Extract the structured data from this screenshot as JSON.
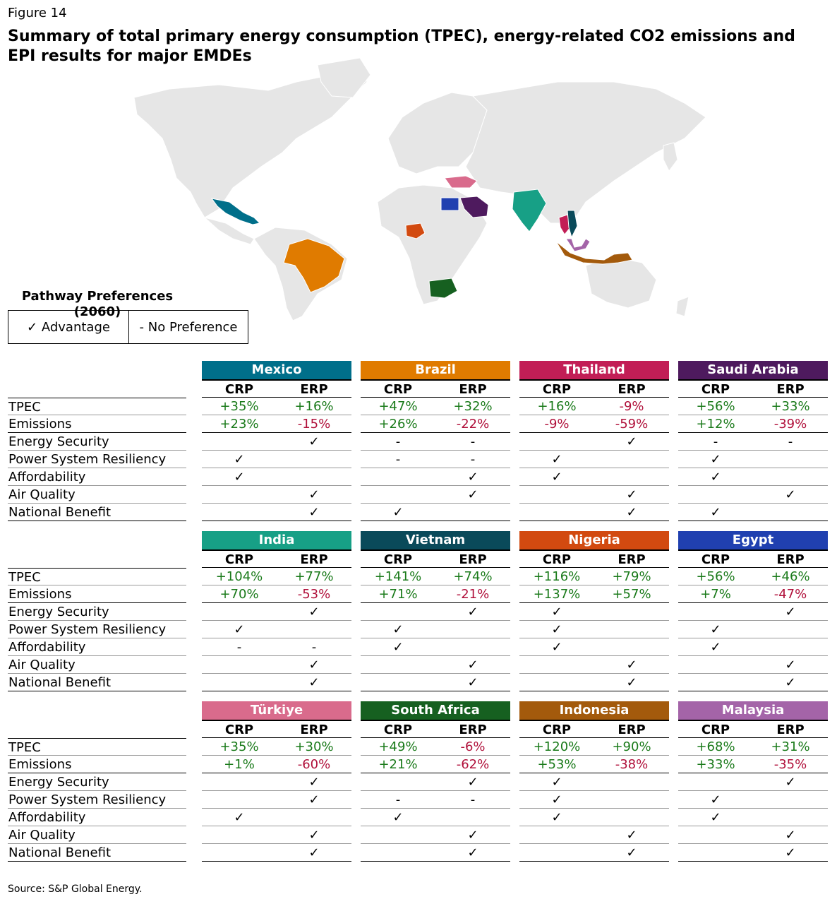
{
  "figure_label": "Figure 14",
  "title": "Summary of total primary energy consumption (TPEC), energy-related CO2 emissions and EPI results for major EMDEs",
  "legend": {
    "title": "Pathway Preferences (2060)",
    "advantage": "✓ Advantage",
    "no_preference": "- No Preference"
  },
  "source": "Source: S&P Global Energy.",
  "chart_data": {
    "type": "table",
    "pathways": [
      "CRP",
      "ERP"
    ],
    "row_labels": [
      "TPEC",
      "Emissions",
      "Energy Security",
      "Power System Resiliency",
      "Affordability",
      "Air Quality",
      "National Benefit"
    ],
    "countries": [
      {
        "name": "Mexico",
        "color": "#006f8a",
        "tpec": [
          "+35%",
          "+16%"
        ],
        "emissions": [
          "+23%",
          "-15%"
        ],
        "energy_security": [
          "",
          "✓"
        ],
        "power_system_resiliency": [
          "✓",
          ""
        ],
        "affordability": [
          "✓",
          ""
        ],
        "air_quality": [
          "",
          "✓"
        ],
        "national_benefit": [
          "",
          "✓"
        ]
      },
      {
        "name": "Brazil",
        "color": "#e07b00",
        "tpec": [
          "+47%",
          "+32%"
        ],
        "emissions": [
          "+26%",
          "-22%"
        ],
        "energy_security": [
          "-",
          "-"
        ],
        "power_system_resiliency": [
          "-",
          "-"
        ],
        "affordability": [
          "",
          "✓"
        ],
        "air_quality": [
          "",
          "✓"
        ],
        "national_benefit": [
          "✓",
          ""
        ]
      },
      {
        "name": "Thailand",
        "color": "#c21e56",
        "tpec": [
          "+16%",
          "-9%"
        ],
        "emissions": [
          "-9%",
          "-59%"
        ],
        "energy_security": [
          "",
          "✓"
        ],
        "power_system_resiliency": [
          "✓",
          ""
        ],
        "affordability": [
          "✓",
          ""
        ],
        "air_quality": [
          "",
          "✓"
        ],
        "national_benefit": [
          "",
          "✓"
        ]
      },
      {
        "name": "Saudi Arabia",
        "color": "#4e1a5e",
        "tpec": [
          "+56%",
          "+33%"
        ],
        "emissions": [
          "+12%",
          "-39%"
        ],
        "energy_security": [
          "-",
          "-"
        ],
        "power_system_resiliency": [
          "✓",
          ""
        ],
        "affordability": [
          "✓",
          ""
        ],
        "air_quality": [
          "",
          "✓"
        ],
        "national_benefit": [
          "✓",
          ""
        ]
      },
      {
        "name": "India",
        "color": "#17a086",
        "tpec": [
          "+104%",
          "+77%"
        ],
        "emissions": [
          "+70%",
          "-53%"
        ],
        "energy_security": [
          "",
          "✓"
        ],
        "power_system_resiliency": [
          "✓",
          ""
        ],
        "affordability": [
          "-",
          "-"
        ],
        "air_quality": [
          "",
          "✓"
        ],
        "national_benefit": [
          "",
          "✓"
        ]
      },
      {
        "name": "Vietnam",
        "color": "#0a4a5a",
        "tpec": [
          "+141%",
          "+74%"
        ],
        "emissions": [
          "+71%",
          "-21%"
        ],
        "energy_security": [
          "",
          "✓"
        ],
        "power_system_resiliency": [
          "✓",
          ""
        ],
        "affordability": [
          "✓",
          ""
        ],
        "air_quality": [
          "",
          "✓"
        ],
        "national_benefit": [
          "",
          "✓"
        ]
      },
      {
        "name": "Nigeria",
        "color": "#d24a10",
        "tpec": [
          "+116%",
          "+79%"
        ],
        "emissions": [
          "+137%",
          "+57%"
        ],
        "energy_security": [
          "✓",
          ""
        ],
        "power_system_resiliency": [
          "✓",
          ""
        ],
        "affordability": [
          "✓",
          ""
        ],
        "air_quality": [
          "",
          "✓"
        ],
        "national_benefit": [
          "",
          "✓"
        ]
      },
      {
        "name": "Egypt",
        "color": "#2040b0",
        "tpec": [
          "+56%",
          "+46%"
        ],
        "emissions": [
          "+7%",
          "-47%"
        ],
        "energy_security": [
          "",
          "✓"
        ],
        "power_system_resiliency": [
          "✓",
          ""
        ],
        "affordability": [
          "✓",
          ""
        ],
        "air_quality": [
          "",
          "✓"
        ],
        "national_benefit": [
          "",
          "✓"
        ]
      },
      {
        "name": "Türkiye",
        "color": "#d96b8c",
        "tpec": [
          "+35%",
          "+30%"
        ],
        "emissions": [
          "+1%",
          "-60%"
        ],
        "energy_security": [
          "",
          "✓"
        ],
        "power_system_resiliency": [
          "",
          "✓"
        ],
        "affordability": [
          "✓",
          ""
        ],
        "air_quality": [
          "",
          "✓"
        ],
        "national_benefit": [
          "",
          "✓"
        ]
      },
      {
        "name": "South Africa",
        "color": "#166020",
        "tpec": [
          "+49%",
          "-6%"
        ],
        "emissions": [
          "+21%",
          "-62%"
        ],
        "energy_security": [
          "",
          "✓"
        ],
        "power_system_resiliency": [
          "-",
          "-"
        ],
        "affordability": [
          "✓",
          ""
        ],
        "air_quality": [
          "",
          "✓"
        ],
        "national_benefit": [
          "",
          "✓"
        ]
      },
      {
        "name": "Indonesia",
        "color": "#a35a0c",
        "tpec": [
          "+120%",
          "+90%"
        ],
        "emissions": [
          "+53%",
          "-38%"
        ],
        "energy_security": [
          "✓",
          ""
        ],
        "power_system_resiliency": [
          "✓",
          ""
        ],
        "affordability": [
          "✓",
          ""
        ],
        "air_quality": [
          "",
          "✓"
        ],
        "national_benefit": [
          "",
          "✓"
        ]
      },
      {
        "name": "Malaysia",
        "color": "#a464a8",
        "tpec": [
          "+68%",
          "+31%"
        ],
        "emissions": [
          "+33%",
          "-35%"
        ],
        "energy_security": [
          "",
          "✓"
        ],
        "power_system_resiliency": [
          "✓",
          ""
        ],
        "affordability": [
          "✓",
          ""
        ],
        "air_quality": [
          "",
          "✓"
        ],
        "national_benefit": [
          "",
          "✓"
        ]
      }
    ]
  }
}
